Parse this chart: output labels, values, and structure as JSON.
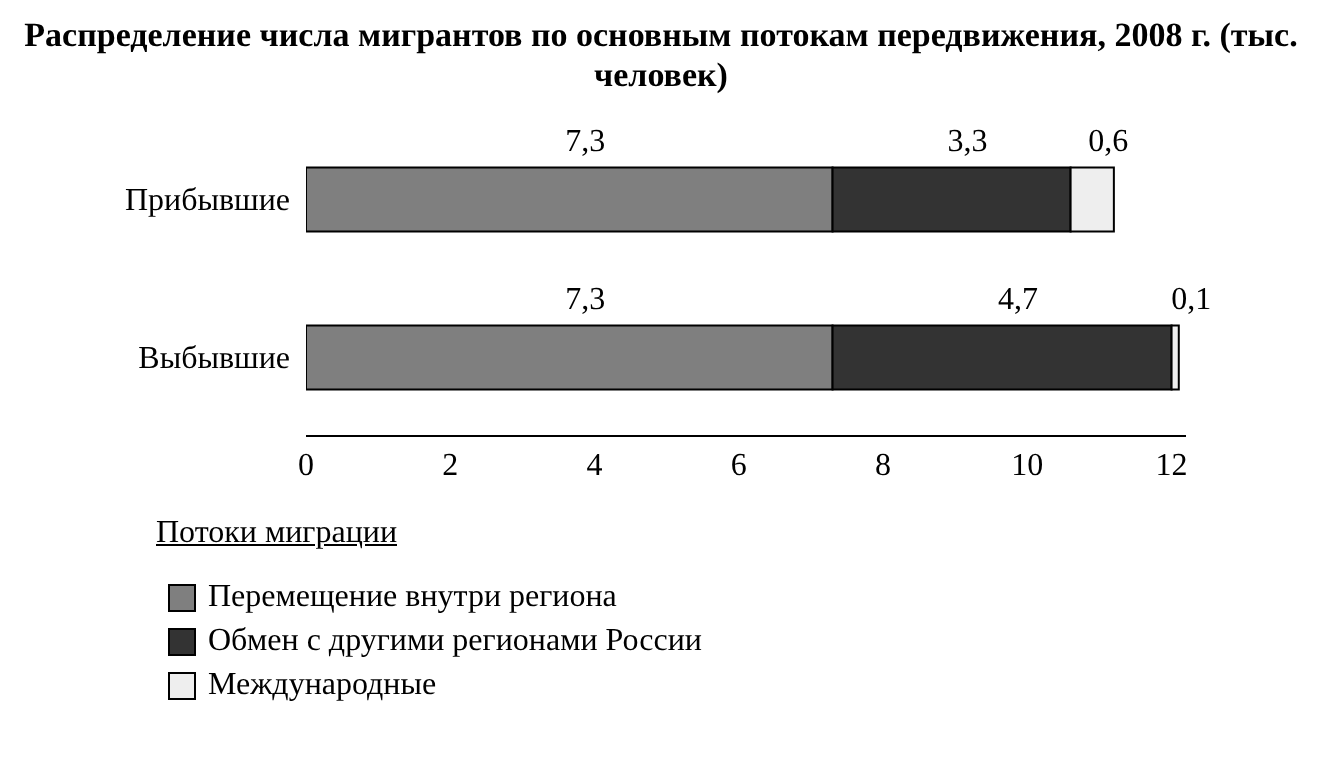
{
  "chart_data": {
    "type": "bar",
    "orientation": "horizontal",
    "stacked": true,
    "title": "Распределение числа мигрантов по основным потокам передвижения, 2008 г. (тыс. человек)",
    "categories": [
      "Прибывшие",
      "Выбывшие"
    ],
    "series": [
      {
        "name": "Перемещение внутри региона",
        "color": "#7f7f7f",
        "values": [
          7.3,
          7.3
        ],
        "value_labels": [
          "7,3",
          "7,3"
        ]
      },
      {
        "name": "Обмен с другими регионами России",
        "color": "#333333",
        "values": [
          3.3,
          4.7
        ],
        "value_labels": [
          "3,3",
          "4,7"
        ]
      },
      {
        "name": "Международные",
        "color": "#eeeeee",
        "values": [
          0.6,
          0.1
        ],
        "value_labels": [
          "0,6",
          "0,1"
        ]
      }
    ],
    "legend_title": "Потоки миграции",
    "legend": "bottom left",
    "grid": false,
    "xlim": [
      0,
      12.2
    ],
    "xticks": [
      0,
      2,
      4,
      6,
      8,
      10,
      12
    ]
  }
}
